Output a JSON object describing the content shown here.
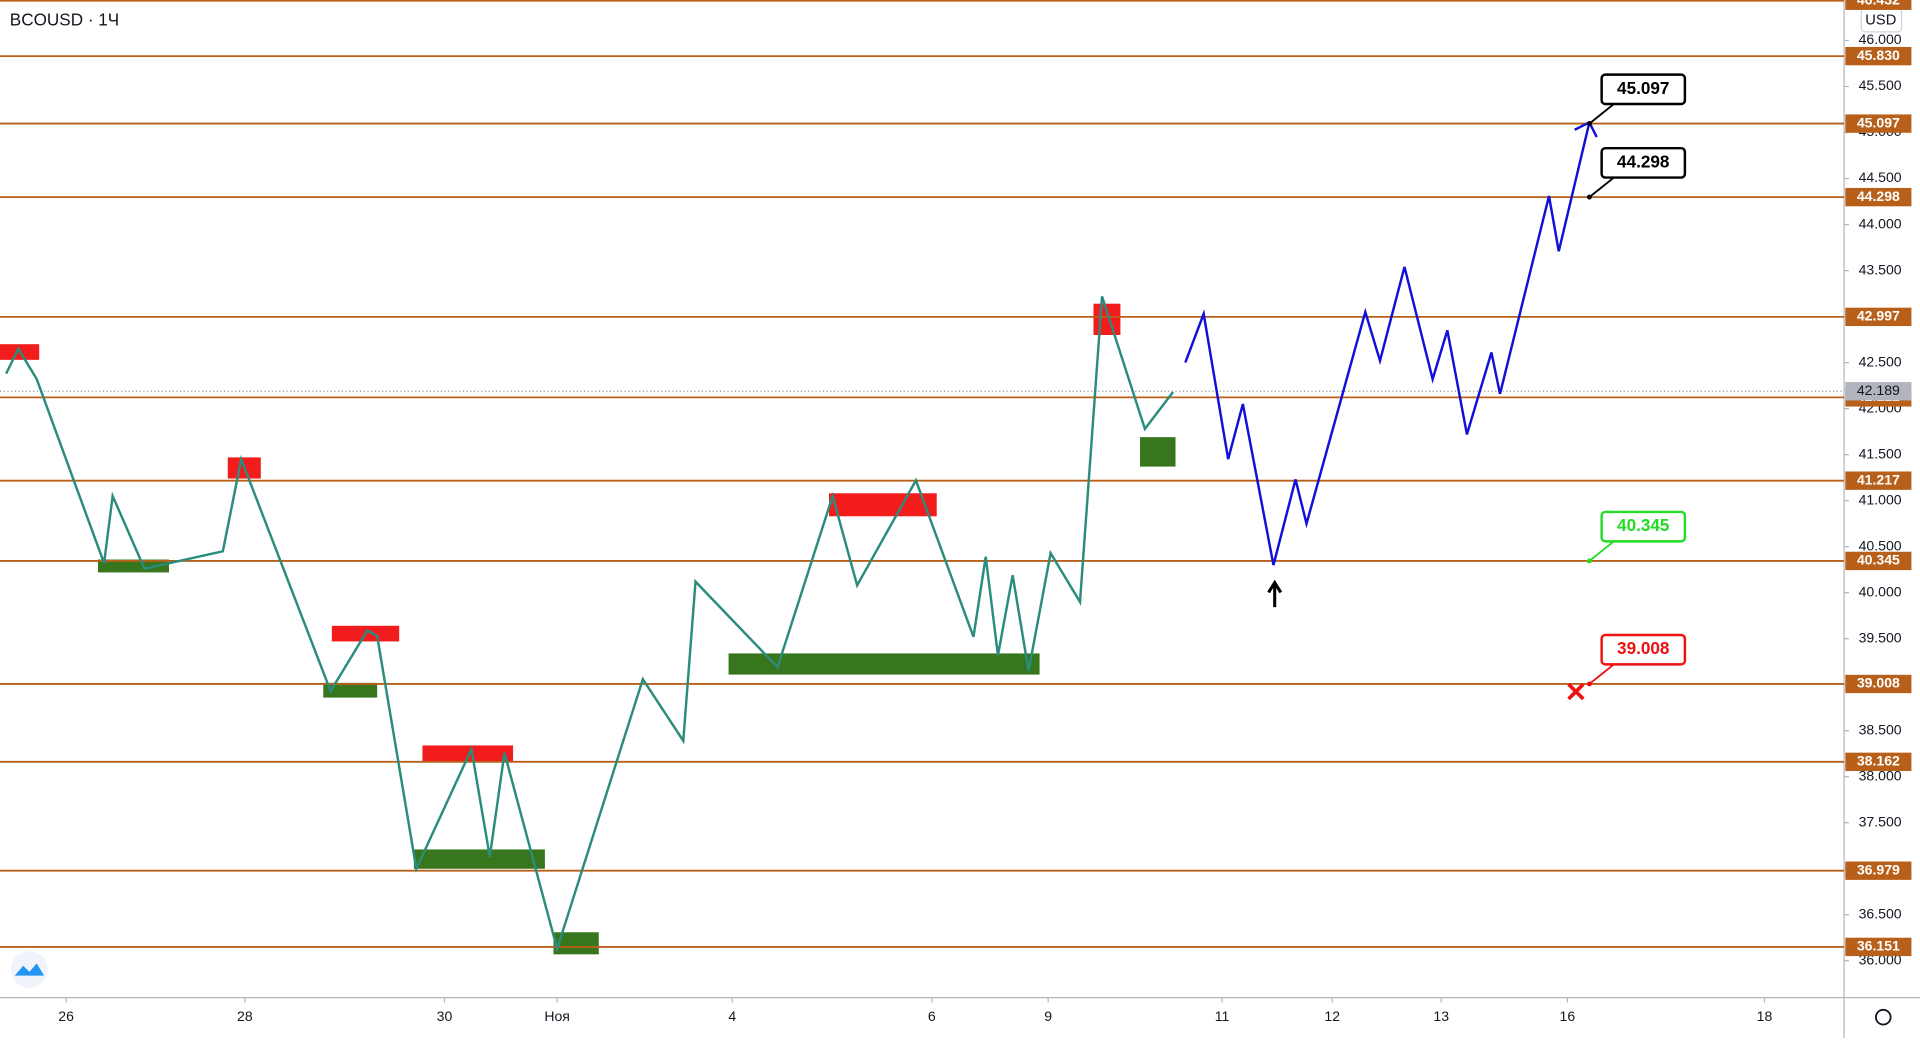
{
  "chart_data": {
    "type": "line",
    "title": "BCOUSD · 1Ч",
    "currency": "USD",
    "xlim": [
      0,
      1505
    ],
    "ylim": [
      35.6,
      46.44
    ],
    "xticks": [
      {
        "value": 54,
        "label": "26"
      },
      {
        "value": 200,
        "label": "28"
      },
      {
        "value": 363,
        "label": "30"
      },
      {
        "value": 455,
        "label": "Ноя"
      },
      {
        "value": 598,
        "label": "4"
      },
      {
        "value": 761,
        "label": "6"
      },
      {
        "value": 856,
        "label": "9"
      },
      {
        "value": 998,
        "label": "11"
      },
      {
        "value": 1088,
        "label": "12"
      },
      {
        "value": 1177,
        "label": "13"
      },
      {
        "value": 1280,
        "label": "16"
      },
      {
        "value": 1441,
        "label": "18"
      }
    ],
    "yticks": [
      {
        "value": 36,
        "label": "36.000"
      },
      {
        "value": 36.5,
        "label": "36.500"
      },
      {
        "value": 37,
        "label": "37.000"
      },
      {
        "value": 37.5,
        "label": "37.500"
      },
      {
        "value": 38,
        "label": "38.000"
      },
      {
        "value": 38.5,
        "label": "38.500"
      },
      {
        "value": 39,
        "label": "39.000"
      },
      {
        "value": 39.5,
        "label": "39.500"
      },
      {
        "value": 40,
        "label": "40.000"
      },
      {
        "value": 40.5,
        "label": "40.500"
      },
      {
        "value": 41,
        "label": "41.000"
      },
      {
        "value": 41.5,
        "label": "41.500"
      },
      {
        "value": 42,
        "label": "42.000"
      },
      {
        "value": 42.5,
        "label": "42.500"
      },
      {
        "value": 43,
        "label": "43.000"
      },
      {
        "value": 43.5,
        "label": "43.500"
      },
      {
        "value": 44,
        "label": "44.000"
      },
      {
        "value": 44.5,
        "label": "44.500"
      },
      {
        "value": 45,
        "label": "45.000"
      },
      {
        "value": 45.5,
        "label": "45.500"
      },
      {
        "value": 46,
        "label": "46.000"
      }
    ],
    "levels": {
      "color": "#b8601a",
      "values": [
        46.432,
        45.83,
        45.097,
        44.298,
        42.997,
        42.122,
        41.217,
        40.345,
        39.008,
        38.162,
        36.979,
        36.151
      ],
      "value_labels": [
        "46.432",
        "45.830",
        "45.097",
        "44.298",
        "42.997",
        "42.122",
        "41.217",
        "40.345",
        "39.008",
        "38.162",
        "36.979",
        "36.151"
      ]
    },
    "last_price": {
      "value": 42.189,
      "label": "42.189"
    },
    "series": [
      {
        "name": "Цена",
        "color": "#2a8c7c",
        "x": [
          5,
          15,
          30,
          85,
          92,
          118,
          182,
          197,
          270,
          300,
          308,
          340,
          385,
          400,
          412,
          455,
          525,
          558,
          568,
          635,
          680,
          700,
          748,
          795,
          805,
          815,
          827,
          840,
          858,
          882,
          900,
          935,
          958
        ],
        "values": [
          42.38,
          42.65,
          42.32,
          40.32,
          41.05,
          40.26,
          40.45,
          41.45,
          38.93,
          39.59,
          39.53,
          37.0,
          38.3,
          37.13,
          38.26,
          36.13,
          39.06,
          38.39,
          40.12,
          39.19,
          41.05,
          40.08,
          41.22,
          39.52,
          40.39,
          39.32,
          40.19,
          39.15,
          40.43,
          39.9,
          43.22,
          41.78,
          42.18
        ]
      },
      {
        "name": "Прогноз",
        "color": "#1010d8",
        "x": [
          968,
          983,
          1003,
          1015,
          1040,
          1058,
          1067,
          1115,
          1127,
          1147,
          1170,
          1182,
          1198,
          1218,
          1225,
          1265,
          1273,
          1298
        ],
        "values": [
          42.5,
          43.03,
          41.45,
          42.05,
          40.3,
          41.23,
          40.75,
          43.05,
          42.52,
          43.54,
          42.32,
          42.85,
          41.72,
          42.61,
          42.16,
          44.31,
          43.71,
          45.11
        ]
      }
    ],
    "zones": [
      {
        "color": "#f21c1c",
        "x": [
          0,
          32
        ],
        "y": [
          42.53,
          42.7
        ]
      },
      {
        "color": "#f21c1c",
        "x": [
          186,
          213
        ],
        "y": [
          41.24,
          41.47
        ]
      },
      {
        "color": "#f21c1c",
        "x": [
          271,
          326
        ],
        "y": [
          39.47,
          39.64
        ]
      },
      {
        "color": "#f21c1c",
        "x": [
          345,
          419
        ],
        "y": [
          38.17,
          38.34
        ]
      },
      {
        "color": "#f21c1c",
        "x": [
          677,
          765
        ],
        "y": [
          40.83,
          41.08
        ]
      },
      {
        "color": "#f21c1c",
        "x": [
          893,
          915
        ],
        "y": [
          42.8,
          43.14
        ]
      },
      {
        "color": "#38761d",
        "x": [
          80,
          138
        ],
        "y": [
          40.22,
          40.36
        ]
      },
      {
        "color": "#38761d",
        "x": [
          264,
          308
        ],
        "y": [
          38.86,
          39.02
        ]
      },
      {
        "color": "#38761d",
        "x": [
          338,
          445
        ],
        "y": [
          37.0,
          37.21
        ]
      },
      {
        "color": "#38761d",
        "x": [
          452,
          489
        ],
        "y": [
          36.07,
          36.31
        ]
      },
      {
        "color": "#38761d",
        "x": [
          595,
          849
        ],
        "y": [
          39.11,
          39.34
        ]
      },
      {
        "color": "#38761d",
        "x": [
          931,
          960
        ],
        "y": [
          41.37,
          41.69
        ]
      }
    ],
    "callouts": [
      {
        "text": "45.097",
        "color": "#000000",
        "y": 45.097
      },
      {
        "text": "44.298",
        "color": "#000000",
        "y": 44.298
      },
      {
        "text": "40.345",
        "color": "#22dd22",
        "y": 40.345
      },
      {
        "text": "39.008",
        "color": "#ee1111",
        "y": 39.008
      }
    ]
  }
}
